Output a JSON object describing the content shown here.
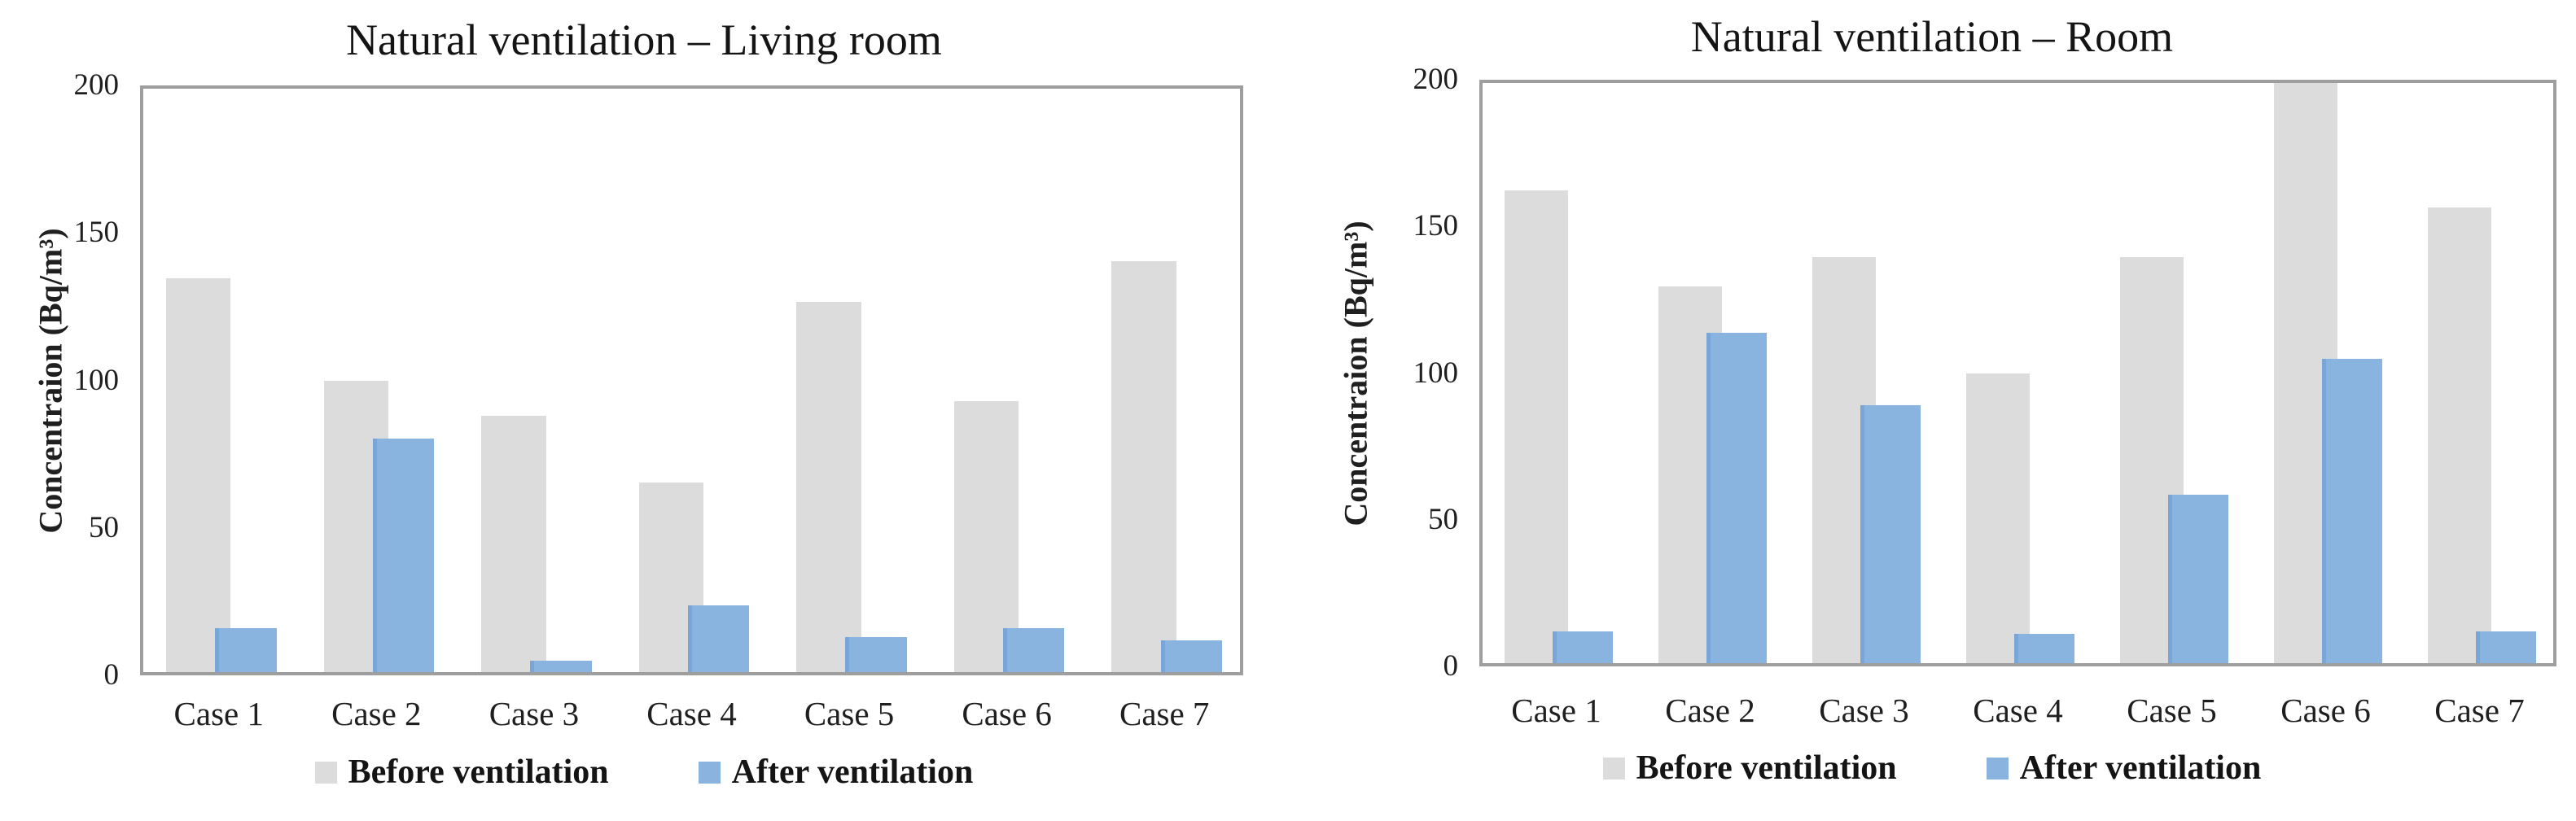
{
  "page": {
    "background": "#ffffff"
  },
  "colors": {
    "before": "#dcdcdc",
    "after": "#8ab4e0",
    "after_edge": "#79a6d8",
    "axis_border": "#9e9e9e",
    "text": "#1f1f1f"
  },
  "chart_data": [
    {
      "type": "bar",
      "title": "Natural ventilation – Living room",
      "ylabel": "Concentraion (Bq/m³)",
      "xlabel": "",
      "categories": [
        "Case 1",
        "Case 2",
        "Case 3",
        "Case 4",
        "Case 5",
        "Case 6",
        "Case 7"
      ],
      "series": [
        {
          "name": "Before ventilation",
          "color": "#dcdcdc",
          "values": [
            135,
            100,
            88,
            65,
            127,
            93,
            141
          ]
        },
        {
          "name": "After ventilation",
          "color": "#8ab4e0",
          "values": [
            15,
            80,
            4,
            23,
            12,
            15,
            11
          ]
        }
      ],
      "ylim": [
        0,
        200
      ],
      "yticks": [
        0,
        50,
        100,
        150,
        200
      ],
      "grid": false,
      "legend_position": "bottom"
    },
    {
      "type": "bar",
      "title": "Natural ventilation – Room",
      "ylabel": "Concentraion (Bq/m³)",
      "xlabel": "",
      "categories": [
        "Case 1",
        "Case 2",
        "Case 3",
        "Case 4",
        "Case 5",
        "Case 6",
        "Case 7"
      ],
      "series": [
        {
          "name": "Before ventilation",
          "color": "#dcdcdc",
          "values": [
            163,
            130,
            140,
            100,
            140,
            200,
            157
          ]
        },
        {
          "name": "After ventilation",
          "color": "#8ab4e0",
          "values": [
            11,
            114,
            89,
            10,
            58,
            105,
            11
          ]
        }
      ],
      "ylim": [
        0,
        200
      ],
      "yticks": [
        0,
        50,
        100,
        150,
        200
      ],
      "grid": false,
      "legend_position": "bottom"
    }
  ]
}
